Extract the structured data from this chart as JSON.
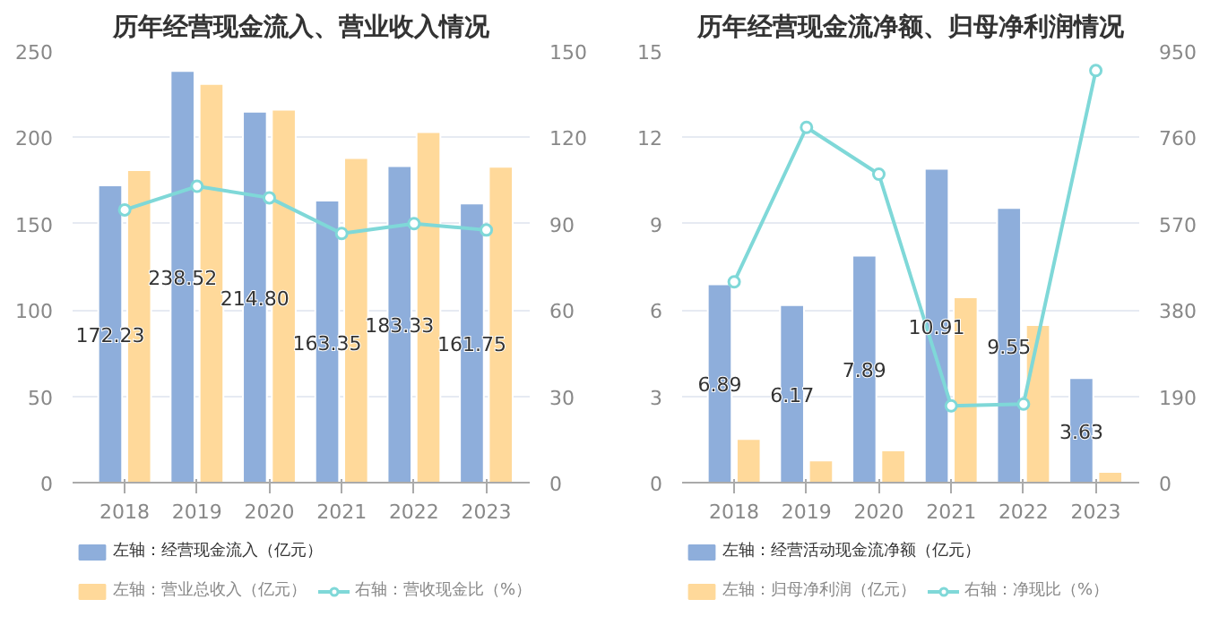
{
  "chart_data": [
    {
      "type": "bar",
      "title": "历年经营现金流入、营业收入情况",
      "categories": [
        "2018",
        "2019",
        "2020",
        "2021",
        "2022",
        "2023"
      ],
      "series": [
        {
          "name": "左轴：经营现金流入（亿元）",
          "color": "#8eaedb",
          "values": [
            172.23,
            238.52,
            214.8,
            163.35,
            183.33,
            161.75
          ],
          "value_labels": [
            "172.23",
            "238.52",
            "214.80",
            "163.35",
            "183.33",
            "161.75"
          ]
        },
        {
          "name": "左轴：营业总收入（亿元）",
          "color": "#ffd99a",
          "values": [
            181,
            231,
            216,
            188,
            203,
            183
          ]
        },
        {
          "name": "右轴：营收现金比（%）",
          "color": "#7fd8d8",
          "type": "line",
          "axis": "y2",
          "values": [
            94.8,
            103,
            99,
            86.6,
            90,
            87.8
          ]
        }
      ],
      "ylim": [
        0,
        250
      ],
      "yticks": [
        0,
        50,
        100,
        150,
        200,
        250
      ],
      "y2lim": [
        0,
        150
      ],
      "y2ticks": [
        0,
        30,
        60,
        90,
        120,
        150
      ],
      "grid": "y",
      "legend": "bottom",
      "marker": "circle",
      "line_style": "solid"
    },
    {
      "type": "bar",
      "title": "历年经营现金流净额、归母净利润情况",
      "categories": [
        "2018",
        "2019",
        "2020",
        "2021",
        "2022",
        "2023"
      ],
      "series": [
        {
          "name": "左轴：经营活动现金流净额（亿元）",
          "color": "#8eaedb",
          "values": [
            6.89,
            6.17,
            7.89,
            10.91,
            9.55,
            3.63
          ],
          "value_labels": [
            "6.89",
            "6.17",
            "7.89",
            "10.91",
            "9.55",
            "3.63"
          ]
        },
        {
          "name": "左轴：归母净利润（亿元）",
          "color": "#ffd99a",
          "values": [
            1.52,
            0.77,
            1.12,
            6.44,
            5.48,
            0.37
          ]
        },
        {
          "name": "右轴：净现比（%）",
          "color": "#7fd8d8",
          "type": "line",
          "axis": "y2",
          "values": [
            442,
            782,
            679,
            169,
            173,
            907
          ]
        }
      ],
      "ylim": [
        0,
        15
      ],
      "yticks": [
        0,
        3,
        6,
        9,
        12,
        15
      ],
      "y2lim": [
        0,
        950
      ],
      "y2ticks": [
        0,
        190,
        380,
        570,
        760,
        950
      ],
      "grid": "y",
      "legend": "bottom",
      "marker": "circle",
      "line_style": "solid"
    }
  ]
}
